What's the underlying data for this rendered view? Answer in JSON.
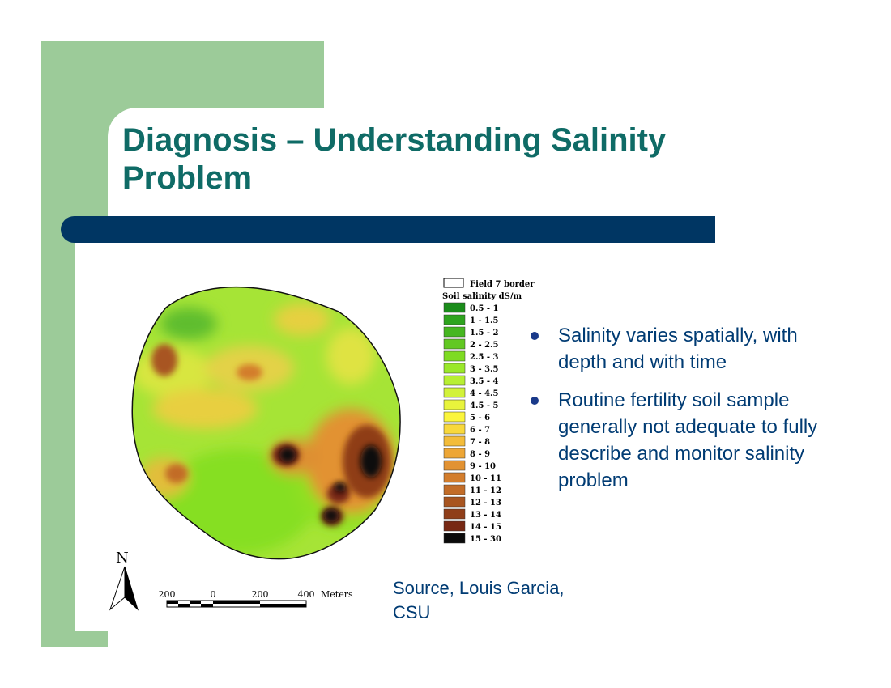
{
  "slide": {
    "title": "Diagnosis – Understanding Salinity Problem",
    "bullets": [
      "Salinity varies spatially, with depth and with time",
      "Routine fertility soil sample generally not adequate to fully describe and monitor salinity problem"
    ],
    "source": "Source, Louis Garcia, CSU"
  },
  "map": {
    "legend_border_label": "Field 7 border",
    "legend_title": "Soil salinity dS/m",
    "legend": [
      {
        "label": "0.5 - 1",
        "color": "#1a8c1a"
      },
      {
        "label": "1 - 1.5",
        "color": "#2ea41e"
      },
      {
        "label": "1.5 - 2",
        "color": "#46b620"
      },
      {
        "label": "2 - 2.5",
        "color": "#62c822"
      },
      {
        "label": "2.5 - 3",
        "color": "#7edb22"
      },
      {
        "label": "3 - 3.5",
        "color": "#9ae82a"
      },
      {
        "label": "3.5 - 4",
        "color": "#b8ef33"
      },
      {
        "label": "4 - 4.5",
        "color": "#d2f23a"
      },
      {
        "label": "4.5 - 5",
        "color": "#e8f43c"
      },
      {
        "label": "5 - 6",
        "color": "#fbf53c"
      },
      {
        "label": "6 - 7",
        "color": "#f8d83c"
      },
      {
        "label": "7 - 8",
        "color": "#f3bc3a"
      },
      {
        "label": "8 - 9",
        "color": "#eda636"
      },
      {
        "label": "9 - 10",
        "color": "#e29232"
      },
      {
        "label": "10 - 11",
        "color": "#d37d2c"
      },
      {
        "label": "11 - 12",
        "color": "#c26c28"
      },
      {
        "label": "12 - 13",
        "color": "#a85520"
      },
      {
        "label": "13 - 14",
        "color": "#8f3e19"
      },
      {
        "label": "14 - 15",
        "color": "#772813"
      },
      {
        "label": "15 - 30",
        "color": "#0a0a0a"
      }
    ],
    "north_label": "N",
    "scale_labels": [
      "200",
      "0",
      "200",
      "400"
    ],
    "scale_unit": "Meters"
  }
}
